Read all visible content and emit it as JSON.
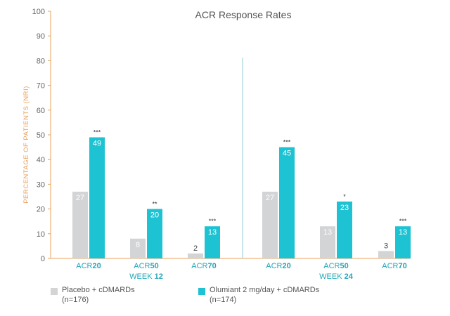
{
  "chart_data": {
    "type": "bar",
    "title": "ACR Response Rates",
    "ylabel": "PERCENTAGE OF PATIENTS (NRI)",
    "ylim": [
      0,
      100
    ],
    "yticks": [
      0,
      10,
      20,
      30,
      40,
      50,
      60,
      70,
      80,
      90,
      100
    ],
    "panels": [
      {
        "label_prefix": "WEEK ",
        "label_bold": "12",
        "categories": [
          {
            "prefix": "ACR",
            "bold": "20"
          },
          {
            "prefix": "ACR",
            "bold": "50"
          },
          {
            "prefix": "ACR",
            "bold": "70"
          }
        ],
        "placebo": [
          27,
          8,
          2
        ],
        "olumiant": [
          49,
          20,
          13
        ],
        "significance": [
          "***",
          "**",
          "***"
        ]
      },
      {
        "label_prefix": "WEEK ",
        "label_bold": "24",
        "categories": [
          {
            "prefix": "ACR",
            "bold": "20"
          },
          {
            "prefix": "ACR",
            "bold": "50"
          },
          {
            "prefix": "ACR",
            "bold": "70"
          }
        ],
        "placebo": [
          27,
          13,
          3
        ],
        "olumiant": [
          45,
          23,
          13
        ],
        "significance": [
          "***",
          "*",
          "***"
        ]
      }
    ],
    "series": [
      {
        "name": "Placebo + cDMARDs",
        "n": "(n=176)",
        "color": "#d3d4d6"
      },
      {
        "name": "Olumiant 2 mg/day + cDMARDs",
        "n": "(n=174)",
        "color": "#1dc3d3"
      }
    ],
    "colors": {
      "axis": "#e8a35a",
      "accent": "#20a7b8",
      "divider": "#8fcfd8",
      "text": "#666666"
    }
  }
}
